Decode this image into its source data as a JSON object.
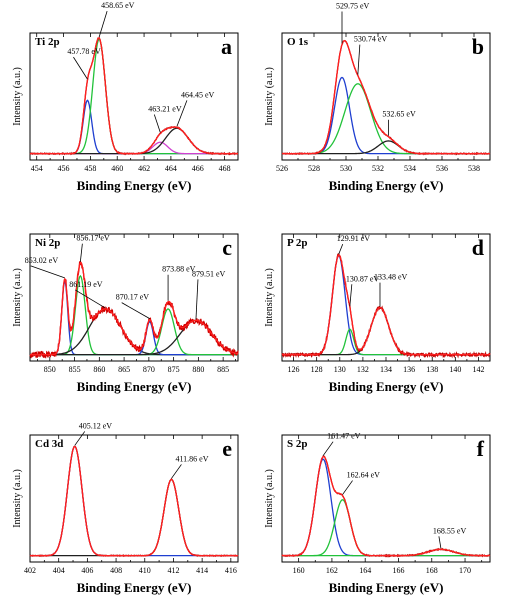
{
  "chart_data": [
    {
      "type": "line",
      "letter": "a",
      "title": "Ti 2p",
      "xlabel": "Binding Energy (eV)",
      "ylabel": "Intensity (a.u.)",
      "xlim": [
        453.5,
        469
      ],
      "xticks": [
        454,
        456,
        458,
        460,
        462,
        464,
        466,
        468
      ],
      "ylim": [
        0,
        1
      ],
      "baseline": 0.05,
      "peaks": [
        {
          "center": 457.78,
          "height": 0.42,
          "fwhm": 0.75,
          "color": "#1f3fd0",
          "label": "457.78 eV"
        },
        {
          "center": 458.65,
          "height": 0.9,
          "fwhm": 1.1,
          "color": "#22c23a",
          "label": "458.65 eV"
        },
        {
          "center": 463.21,
          "height": 0.09,
          "fwhm": 1.3,
          "color": "#d040d0",
          "label": "463.21 eV"
        },
        {
          "center": 464.45,
          "height": 0.2,
          "fwhm": 2.0,
          "color": "#202020",
          "label": "464.45 eV"
        }
      ],
      "envelope_color": "#ff2020",
      "raw_color": "#b00000",
      "noise": 0.004
    },
    {
      "type": "line",
      "letter": "b",
      "title": "O 1s",
      "xlabel": "Binding Energy (eV)",
      "ylabel": "Intensity (a.u.)",
      "xlim": [
        526,
        539
      ],
      "xticks": [
        526,
        528,
        530,
        532,
        534,
        536,
        538
      ],
      "ylim": [
        0,
        1
      ],
      "baseline": 0.05,
      "peaks": [
        {
          "center": 529.75,
          "height": 0.6,
          "fwhm": 1.1,
          "color": "#1f3fd0",
          "label": "529.75 eV"
        },
        {
          "center": 530.74,
          "height": 0.55,
          "fwhm": 1.9,
          "color": "#22c23a",
          "label": "530.74 eV"
        },
        {
          "center": 532.65,
          "height": 0.1,
          "fwhm": 1.5,
          "color": "#202020",
          "label": "532.65 eV"
        }
      ],
      "envelope_color": "#ff2020",
      "raw_color": "#b00000",
      "noise": 0.004
    },
    {
      "type": "line",
      "letter": "c",
      "title": "Ni 2p",
      "xlabel": "Binding Energy (eV)",
      "ylabel": "Intensity (a.u.)",
      "xlim": [
        846,
        888
      ],
      "xticks": [
        850,
        855,
        860,
        865,
        870,
        875,
        880,
        885
      ],
      "ylim": [
        0,
        1
      ],
      "baseline": 0.05,
      "peaks": [
        {
          "center": 853.02,
          "height": 0.58,
          "fwhm": 1.4,
          "color": "#1f3fd0",
          "label": "853.02 eV"
        },
        {
          "center": 856.17,
          "height": 0.62,
          "fwhm": 2.3,
          "color": "#22c23a",
          "label": "856.17 eV"
        },
        {
          "center": 861.19,
          "height": 0.36,
          "fwhm": 7.5,
          "color": "#202020",
          "label": "861.19 eV"
        },
        {
          "center": 870.17,
          "height": 0.26,
          "fwhm": 1.8,
          "color": "#1f3fd0",
          "label": "870.17 eV"
        },
        {
          "center": 873.88,
          "height": 0.36,
          "fwhm": 3.0,
          "color": "#22c23a",
          "label": "873.88 eV"
        },
        {
          "center": 879.51,
          "height": 0.27,
          "fwhm": 7.5,
          "color": "#202020",
          "label": "879.51 eV"
        }
      ],
      "envelope_color": "#ff2020",
      "raw_color": "#d00000",
      "noise": 0.025
    },
    {
      "type": "line",
      "letter": "d",
      "title": "P 2p",
      "xlabel": "Binding Energy (eV)",
      "ylabel": "Intensity (a.u.)",
      "xlim": [
        125,
        143
      ],
      "xticks": [
        126,
        128,
        130,
        132,
        134,
        136,
        138,
        140,
        142
      ],
      "ylim": [
        0,
        1
      ],
      "baseline": 0.05,
      "peaks": [
        {
          "center": 129.91,
          "height": 0.78,
          "fwhm": 1.3,
          "color": "#1f3fd0",
          "label": "129.91 eV"
        },
        {
          "center": 130.87,
          "height": 0.2,
          "fwhm": 0.8,
          "color": "#22c23a",
          "label": "130.87 eV"
        },
        {
          "center": 133.48,
          "height": 0.37,
          "fwhm": 1.8,
          "color": "#202020",
          "label": "133.48 eV"
        }
      ],
      "envelope_color": "#ff2020",
      "raw_color": "#c00000",
      "noise": 0.012
    },
    {
      "type": "line",
      "letter": "e",
      "title": "Cd 3d",
      "xlabel": "Binding Energy (eV)",
      "ylabel": "Intensity (a.u.)",
      "xlim": [
        402,
        416.5
      ],
      "xticks": [
        402,
        404,
        406,
        408,
        410,
        412,
        414,
        416
      ],
      "ylim": [
        0,
        1
      ],
      "baseline": 0.05,
      "peaks": [
        {
          "center": 405.12,
          "height": 0.86,
          "fwhm": 1.2,
          "color": "#1f3fd0",
          "label": "405.12 eV"
        },
        {
          "center": 411.86,
          "height": 0.6,
          "fwhm": 1.2,
          "color": "#202020",
          "label": "411.86 eV"
        }
      ],
      "envelope_color": "#ff2020",
      "raw_color": "#b00000",
      "noise": 0.003
    },
    {
      "type": "line",
      "letter": "f",
      "title": "S 2p",
      "xlabel": "Binding Energy (eV)",
      "ylabel": "Intensity (a.u.)",
      "xlim": [
        159,
        171.5
      ],
      "xticks": [
        160,
        162,
        164,
        166,
        168,
        170
      ],
      "ylim": [
        0,
        1
      ],
      "baseline": 0.05,
      "peaks": [
        {
          "center": 161.47,
          "height": 0.76,
          "fwhm": 1.1,
          "color": "#1f3fd0",
          "label": "161.47 eV"
        },
        {
          "center": 162.64,
          "height": 0.44,
          "fwhm": 1.1,
          "color": "#22c23a",
          "label": "162.64 eV"
        },
        {
          "center": 168.55,
          "height": 0.05,
          "fwhm": 1.8,
          "color": "#22c23a",
          "label": "168.55 eV"
        }
      ],
      "envelope_color": "#ff2020",
      "raw_color": "#b00000",
      "noise": 0.004
    }
  ]
}
